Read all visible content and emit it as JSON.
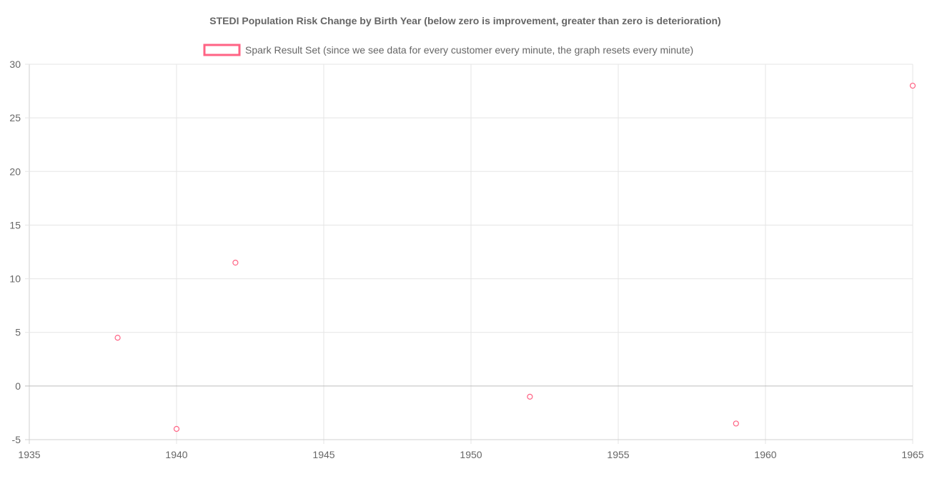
{
  "chart_data": {
    "type": "scatter",
    "title": "STEDI Population Risk Change by Birth Year (below zero is improvement, greater than zero is deterioration)",
    "xlabel": "",
    "ylabel": "",
    "xlim": [
      1935,
      1965
    ],
    "ylim": [
      -5,
      30
    ],
    "x_ticks": [
      "1935",
      "1940",
      "1945",
      "1950",
      "1955",
      "1960",
      "1965"
    ],
    "y_ticks": [
      "30",
      "25",
      "20",
      "15",
      "10",
      "5",
      "0",
      "-5"
    ],
    "grid": true,
    "legend_position": "top-center",
    "series": [
      {
        "name": "Spark Result Set (since we see data for every customer every minute, the graph resets every minute)",
        "color": "#ff6384",
        "points": [
          {
            "x": 1938,
            "y": 4.5
          },
          {
            "x": 1940,
            "y": -4
          },
          {
            "x": 1942,
            "y": 11.5
          },
          {
            "x": 1952,
            "y": -1
          },
          {
            "x": 1959,
            "y": -3.5
          },
          {
            "x": 1965,
            "y": 28
          }
        ]
      }
    ]
  }
}
